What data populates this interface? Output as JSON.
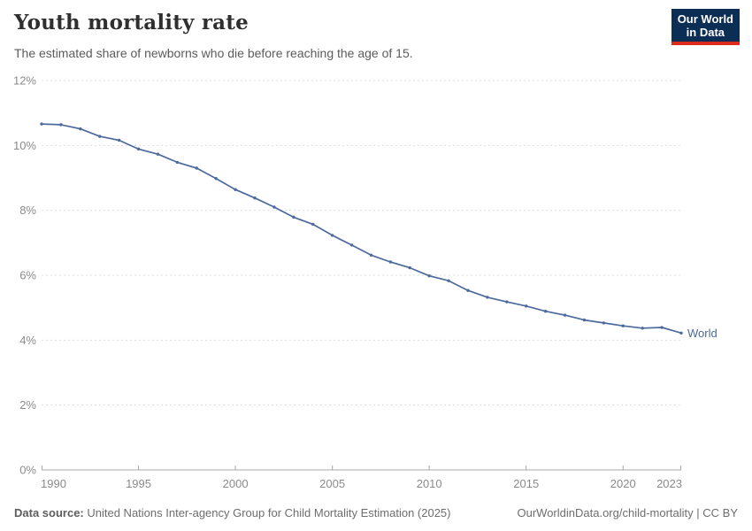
{
  "header": {
    "title": "Youth mortality rate",
    "subtitle": "The estimated share of newborns who die before reaching the age of 15.",
    "logo": {
      "line1": "Our World",
      "line2": "in Data",
      "bg_color": "#0c2d54",
      "accent_color": "#dc2a1e"
    }
  },
  "footer": {
    "source_label": "Data source:",
    "source_text": " United Nations Inter-agency Group for Child Mortality Estimation (2025)",
    "citation": "OurWorldinData.org/child-mortality | CC BY"
  },
  "chart_data": {
    "type": "line",
    "title": "Youth mortality rate",
    "xlabel": "",
    "ylabel": "",
    "xlim": [
      1990,
      2023
    ],
    "ylim": [
      0,
      12
    ],
    "grid": "horizontal-dashed",
    "x": [
      1990,
      1991,
      1992,
      1993,
      1994,
      1995,
      1996,
      1997,
      1998,
      1999,
      2000,
      2001,
      2002,
      2003,
      2004,
      2005,
      2006,
      2007,
      2008,
      2009,
      2010,
      2011,
      2012,
      2013,
      2014,
      2015,
      2016,
      2017,
      2018,
      2019,
      2020,
      2021,
      2022,
      2023
    ],
    "series": [
      {
        "name": "World",
        "color": "#4c6a9c",
        "values": [
          10.66,
          10.64,
          10.51,
          10.28,
          10.16,
          9.89,
          9.73,
          9.48,
          9.3,
          8.98,
          8.64,
          8.38,
          8.1,
          7.79,
          7.57,
          7.23,
          6.93,
          6.62,
          6.41,
          6.23,
          5.98,
          5.83,
          5.53,
          5.32,
          5.18,
          5.05,
          4.89,
          4.77,
          4.62,
          4.53,
          4.44,
          4.37,
          4.39,
          4.22
        ]
      }
    ],
    "x_ticks": [
      1990,
      1995,
      2000,
      2005,
      2010,
      2015,
      2020,
      2023
    ],
    "x_tick_labels": [
      "1990",
      "1995",
      "2000",
      "2005",
      "2010",
      "2015",
      "2020",
      "2023"
    ],
    "y_ticks": [
      0,
      2,
      4,
      6,
      8,
      10,
      12
    ],
    "y_tick_labels": [
      "0%",
      "2%",
      "4%",
      "6%",
      "8%",
      "10%",
      "12%"
    ],
    "end_label": "World",
    "legend_position": "end-of-line",
    "axis_color": "#a8a8a8",
    "grid_color": "#dddddd",
    "tick_label_color": "#8a8a8a"
  }
}
